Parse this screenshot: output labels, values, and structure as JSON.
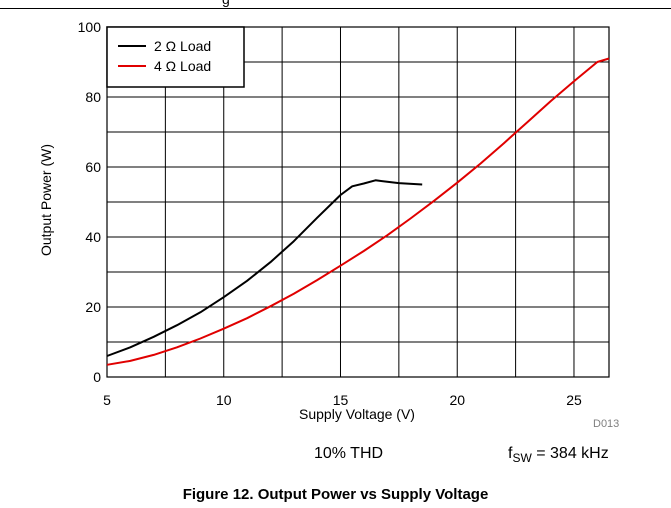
{
  "page": {
    "top_fragment": "g",
    "figure_title": "Figure 12. Output Power vs Supply Voltage",
    "figure_id": "D013",
    "condition_thd": "10% THD",
    "condition_fsw_symbol": "f",
    "condition_fsw_subscript": "SW",
    "condition_fsw_value": " = 384 kHz"
  },
  "chart_data": {
    "type": "line",
    "title": "Figure 12. Output Power vs Supply Voltage",
    "xlabel": "Supply Voltage (V)",
    "ylabel": "Output Power (W)",
    "xlim": [
      5,
      26.5
    ],
    "ylim": [
      0,
      100
    ],
    "x_ticks": [
      5,
      10,
      15,
      20,
      25
    ],
    "x_tick_labels": [
      "5",
      "10",
      "15",
      "20",
      "25"
    ],
    "y_ticks": [
      0,
      20,
      40,
      60,
      80,
      100
    ],
    "y_tick_labels": [
      "0",
      "20",
      "40",
      "60",
      "80",
      "100"
    ],
    "x_minor_gridlines": [
      7.5,
      12.5,
      17.5,
      22.5
    ],
    "y_minor_gridlines": [
      10,
      30,
      50,
      70,
      90
    ],
    "grid": true,
    "legend_position": "top-left",
    "series": [
      {
        "name": "2 Ω Load",
        "color": "#000000",
        "points": [
          [
            5,
            6
          ],
          [
            6,
            8.5
          ],
          [
            7,
            11.5
          ],
          [
            8,
            14.8
          ],
          [
            9,
            18.5
          ],
          [
            10,
            22.8
          ],
          [
            11,
            27.5
          ],
          [
            12,
            32.8
          ],
          [
            13,
            38.8
          ],
          [
            14,
            45.5
          ],
          [
            15,
            52
          ],
          [
            15.5,
            54.5
          ],
          [
            16,
            55.3
          ],
          [
            16.5,
            56.2
          ],
          [
            17,
            55.8
          ],
          [
            17.5,
            55.4
          ],
          [
            18.5,
            55
          ]
        ]
      },
      {
        "name": "4 Ω Load",
        "color": "#e00000",
        "points": [
          [
            5,
            3.5
          ],
          [
            6,
            4.6
          ],
          [
            7,
            6.3
          ],
          [
            8,
            8.5
          ],
          [
            9,
            11
          ],
          [
            10,
            13.8
          ],
          [
            11,
            16.8
          ],
          [
            12,
            20.2
          ],
          [
            13,
            23.8
          ],
          [
            14,
            27.7
          ],
          [
            15,
            31.8
          ],
          [
            16,
            36
          ],
          [
            17,
            40.5
          ],
          [
            18,
            45.3
          ],
          [
            19,
            50.3
          ],
          [
            20,
            55.5
          ],
          [
            21,
            61
          ],
          [
            22,
            66.8
          ],
          [
            23,
            72.8
          ],
          [
            24,
            78.8
          ],
          [
            25,
            84.5
          ],
          [
            26,
            90
          ],
          [
            26.5,
            91
          ]
        ]
      }
    ]
  }
}
